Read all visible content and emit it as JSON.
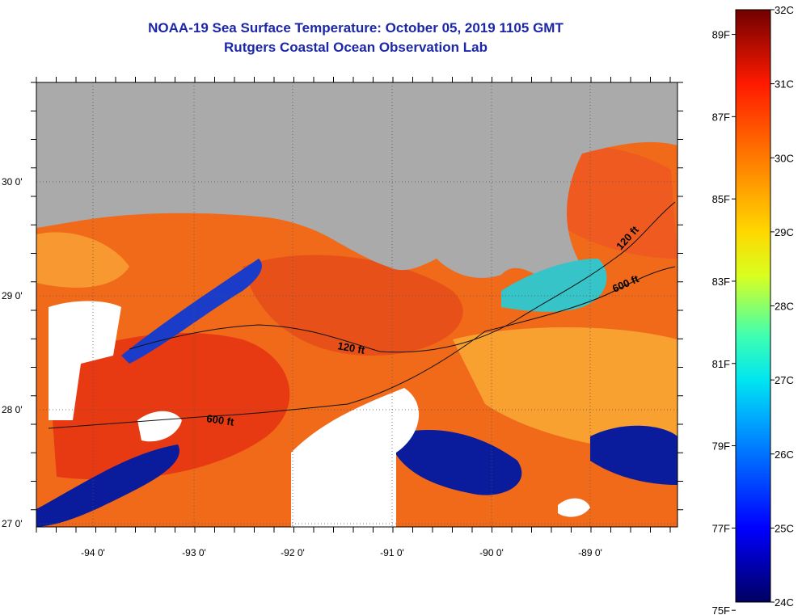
{
  "title_line1": "NOAA-19 Sea Surface Temperature:  October 05, 2019 1105 GMT",
  "title_line2": "Rutgers Coastal Ocean Observation Lab",
  "map": {
    "lat_labels": [
      "30 0'",
      "29 0'",
      "28 0'",
      "27 0'"
    ],
    "lon_labels": [
      "-94 0'",
      "-93 0'",
      "-92 0'",
      "-91 0'",
      "-90 0'",
      "-89 0'"
    ],
    "contours": [
      {
        "label": "120 ft"
      },
      {
        "label": "600 ft"
      },
      {
        "label": "120 ft"
      },
      {
        "label": "600 ft"
      }
    ],
    "colors": {
      "land": "#aaaaaa",
      "cloud": "#ffffff",
      "warm": "#f06a1a",
      "hot": "#e82a10",
      "cold": "#0a1c9c",
      "mid": "#36c4c8"
    }
  },
  "colorbar": {
    "celsius": [
      "32C",
      "31C",
      "30C",
      "29C",
      "28C",
      "27C",
      "26C",
      "25C",
      "24C"
    ],
    "fahrenheit": [
      "89F",
      "87F",
      "85F",
      "83F",
      "81F",
      "79F",
      "77F",
      "75F"
    ]
  }
}
